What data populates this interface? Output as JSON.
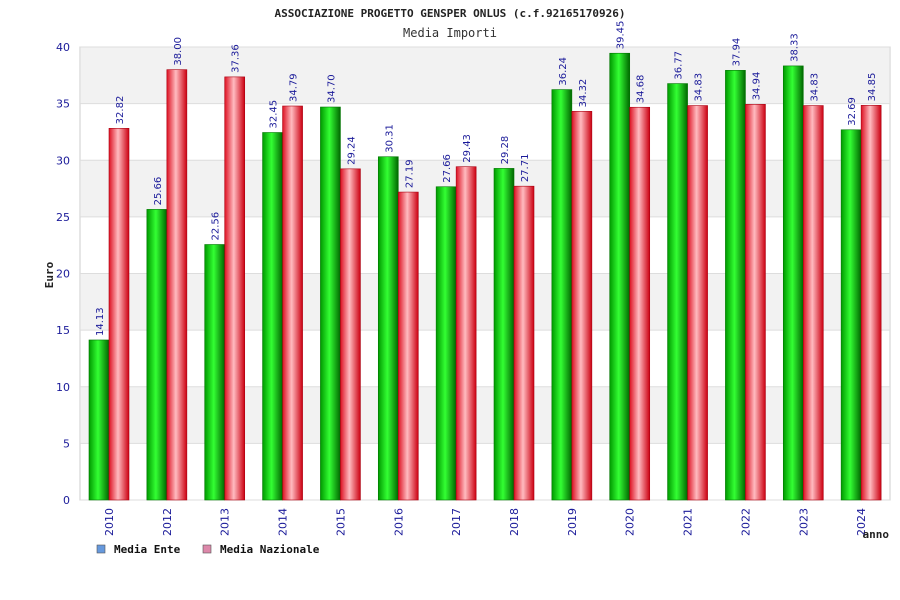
{
  "chart_data": {
    "type": "bar",
    "title": "ASSOCIAZIONE PROGETTO GENSPER ONLUS (c.f.92165170926)",
    "subtitle": "Media Importi",
    "xlabel": "anno",
    "ylabel": "Euro",
    "ylim": [
      0,
      40
    ],
    "yticks": [
      "0",
      "5",
      "10",
      "15",
      "20",
      "25",
      "30",
      "35",
      "40"
    ],
    "grid": true,
    "legend_position": "bottom-left",
    "categories": [
      "2010",
      "2012",
      "2013",
      "2014",
      "2015",
      "2016",
      "2017",
      "2018",
      "2019",
      "2020",
      "2021",
      "2022",
      "2023",
      "2024"
    ],
    "series": [
      {
        "name": "Media Ente",
        "color": "#00cc00",
        "legend_color": "#6699dd",
        "values": [
          14.13,
          25.66,
          22.56,
          32.45,
          34.7,
          30.31,
          27.66,
          29.28,
          36.24,
          39.45,
          36.77,
          37.94,
          38.33,
          32.69
        ],
        "labels": [
          "14.13",
          "25.66",
          "22.56",
          "32.45",
          "34.70",
          "30.31",
          "27.66",
          "29.28",
          "36.24",
          "39.45",
          "36.77",
          "37.94",
          "38.33",
          "32.69"
        ]
      },
      {
        "name": "Media Nazionale",
        "color": "#ee2233",
        "legend_color": "#dd88aa",
        "values": [
          32.82,
          38.0,
          37.36,
          34.79,
          29.24,
          27.19,
          29.43,
          27.71,
          34.32,
          34.68,
          34.83,
          34.94,
          34.83,
          34.85
        ],
        "labels": [
          "32.82",
          "38.00",
          "37.36",
          "34.79",
          "29.24",
          "27.19",
          "29.43",
          "27.71",
          "34.32",
          "34.68",
          "34.83",
          "34.94",
          "34.83",
          "34.85"
        ]
      }
    ]
  }
}
